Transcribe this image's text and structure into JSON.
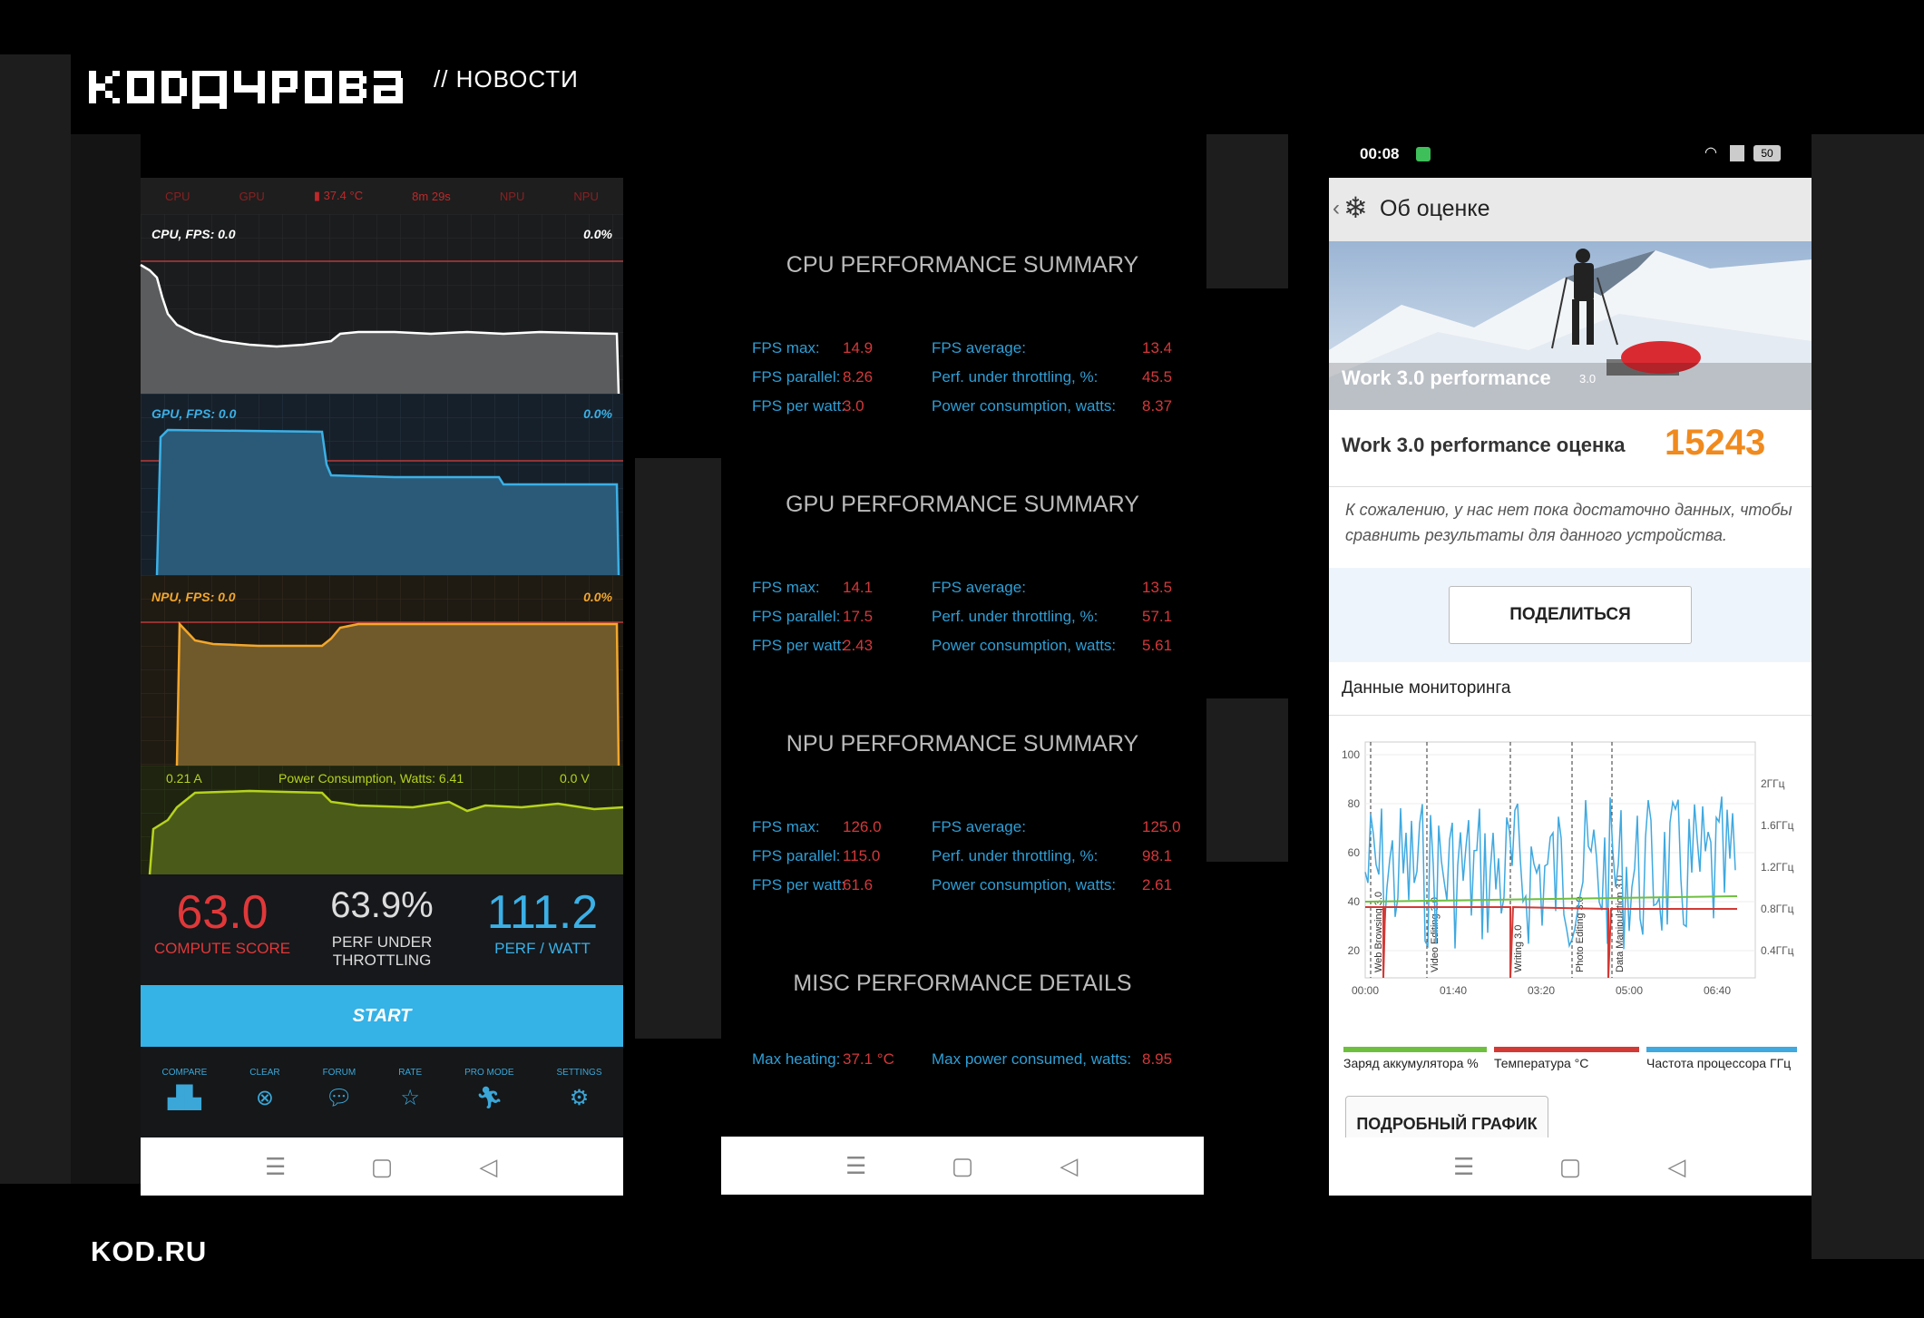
{
  "header": {
    "logo_text": "KOДУРОВА",
    "section": "// НОВОСТИ"
  },
  "footer": {
    "site": "KOD.RU"
  },
  "phone1": {
    "topbar": [
      "CPU",
      "GPU",
      "▮ 37.4 °C",
      "8m 29s",
      "NPU",
      "NPU"
    ],
    "graphs": {
      "cpu": {
        "label": "CPU, FPS:  0.0",
        "pct": "0.0%"
      },
      "gpu": {
        "label": "GPU, FPS:  0.0",
        "pct": "0.0%"
      },
      "npu": {
        "label": "NPU, FPS:  0.0",
        "pct": "0.0%"
      }
    },
    "power": {
      "amp": "0.21 A",
      "label": "Power Consumption, Watts:   6.41",
      "volt": "0.0 V"
    },
    "scores": {
      "compute": {
        "value": "63.0",
        "label": "COMPUTE SCORE"
      },
      "throttle": {
        "value": "63.9%",
        "label1": "PERF UNDER",
        "label2": "THROTTLING"
      },
      "perfwatt": {
        "value": "111.2",
        "label": "PERF / WATT"
      }
    },
    "start": "START",
    "tools": [
      "COMPARE",
      "CLEAR",
      "FORUM",
      "RATE",
      "PRO MODE",
      "SETTINGS"
    ],
    "colors": {
      "cpu": "#ffffff",
      "gpu": "#3bb0e6",
      "npu": "#f3a72c",
      "power": "#b6d31e"
    }
  },
  "phone2": {
    "cpu": {
      "title": "CPU PERFORMANCE SUMMARY",
      "rows": [
        [
          "FPS max:",
          "14.9",
          "FPS average:",
          "13.4"
        ],
        [
          "FPS parallel:",
          "8.26",
          "Perf. under throttling, %:",
          "45.5"
        ],
        [
          "FPS per watt:",
          "3.0",
          "Power consumption, watts:",
          "8.37"
        ]
      ]
    },
    "gpu": {
      "title": "GPU PERFORMANCE SUMMARY",
      "rows": [
        [
          "FPS max:",
          "14.1",
          "FPS average:",
          "13.5"
        ],
        [
          "FPS parallel:",
          "17.5",
          "Perf. under throttling, %:",
          "57.1"
        ],
        [
          "FPS per watt:",
          "2.43",
          "Power consumption, watts:",
          "5.61"
        ]
      ]
    },
    "npu": {
      "title": "NPU PERFORMANCE SUMMARY",
      "rows": [
        [
          "FPS max:",
          "126.0",
          "FPS average:",
          "125.0"
        ],
        [
          "FPS parallel:",
          "115.0",
          "Perf. under throttling, %:",
          "98.1"
        ],
        [
          "FPS per watt:",
          "61.6",
          "Power consumption, watts:",
          "2.61"
        ]
      ]
    },
    "misc": {
      "title": "MISC PERFORMANCE DETAILS",
      "rows": [
        [
          "Max heating:",
          "37.1 °C",
          "Max power consumed, watts:",
          "8.95"
        ]
      ]
    }
  },
  "phone3": {
    "status": {
      "time": "00:08",
      "battery": "50"
    },
    "title": "Об оценке",
    "hero_label": "Work 3.0 performance",
    "hero_badge": "3.0",
    "score_label": "Work 3.0 performance оценка",
    "score_value": "15243",
    "notice": "К сожалению, у нас нет пока достаточно данных, чтобы сравнить результаты для данного устройства.",
    "share": "ПОДЕЛИТЬСЯ",
    "monitoring": "Данные мониторинга",
    "chart": {
      "y_left": [
        "100",
        "80",
        "60",
        "40",
        "20"
      ],
      "y_right": [
        "2ГГц",
        "1.6ГГц",
        "1.2ГГц",
        "0.8ГГц",
        "0.4ГГц"
      ],
      "x": [
        "00:00",
        "01:40",
        "03:20",
        "05:00",
        "06:40"
      ],
      "segments": [
        "Web Browsing 3.0",
        "Video Editing 3.0",
        "Writing 3.0",
        "Photo Editing 3.0",
        "Data Manipulation 3.0"
      ]
    },
    "legend": [
      "Заряд аккумулятора %",
      "Температура °C",
      "Частота процессора ГГц"
    ],
    "legend_colors": [
      "#6fbf3f",
      "#d23a36",
      "#3fa9e0"
    ],
    "details": "ПОДРОБНЫЙ ГРАФИК"
  }
}
